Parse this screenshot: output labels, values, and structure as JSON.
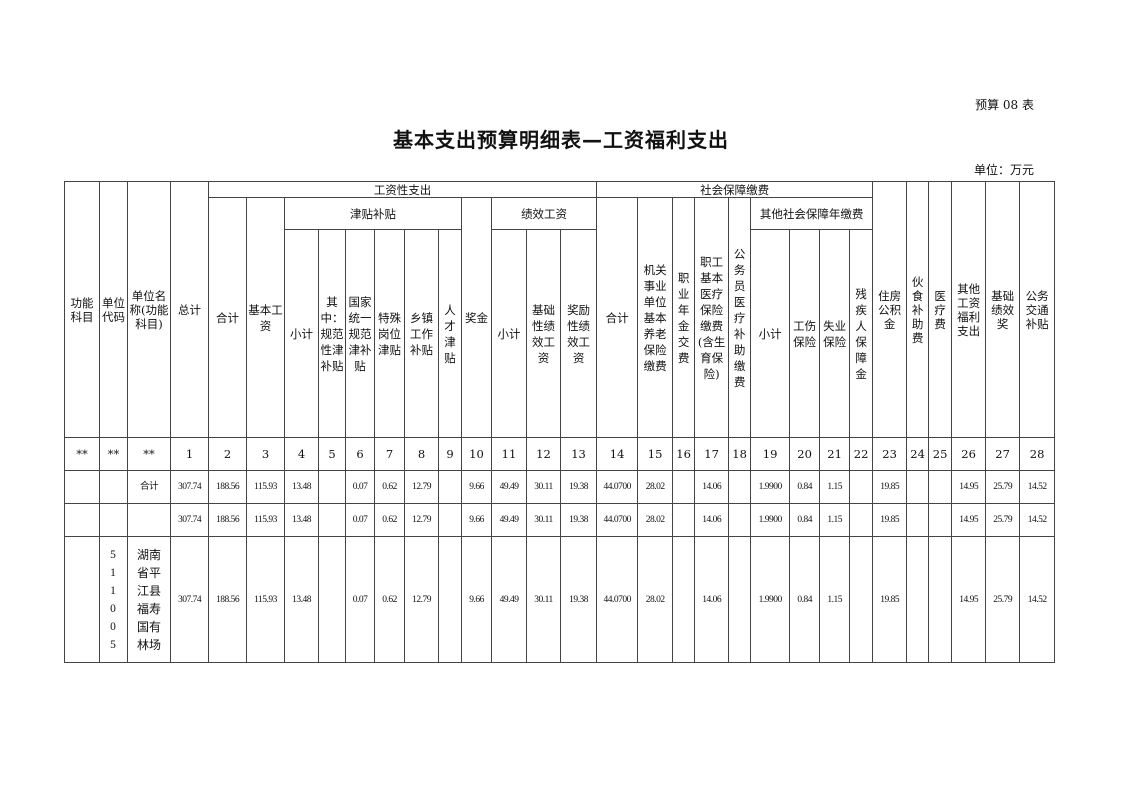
{
  "form_no": "预算 08 表",
  "title": "基本支出预算明细表—工资福利支出",
  "unit": "单位：万元",
  "headers": {
    "func_subject": "功能科目",
    "unit_code": "单位代码",
    "unit_name": "单位名称(功能科目)",
    "total": "总计",
    "wage_group": "工资性支出",
    "social_group": "社会保障缴费",
    "wage_sum": "合计",
    "basic_wage": "基本工资",
    "allowance_group": "津贴补贴",
    "bonus": "奖金",
    "perf_group": "绩效工资",
    "social_sum": "合计",
    "pension": "机关事业单位基本养老保险缴费",
    "annuity": "职业年金交费",
    "medical": "职工基本医疗保险缴费(含生育保险)",
    "civil_medical": "公务员医疗补助缴费",
    "other_social_group": "其他社会保障年缴费",
    "housing": "住房公积金",
    "meal": "伙食补助费",
    "medical_fee": "医疗费",
    "other_welfare": "其他工资福利支出",
    "basic_perf_bonus": "基础绩效奖",
    "transport": "公务交通补贴",
    "allow_subtotal": "小计",
    "allow_standard": "其中：规范性津补贴",
    "allow_national": "国家统一规范津补贴",
    "allow_special": "特殊岗位津贴",
    "allow_town": "乡镇工作补贴",
    "allow_talent": "人才津贴",
    "perf_subtotal": "小计",
    "perf_basic": "基础性绩效工资",
    "perf_reward": "奖励性绩效工资",
    "other_subtotal": "小计",
    "injury": "工伤保险",
    "unemployment": "失业保险",
    "disability": "残疾人保障金"
  },
  "col_numbers": [
    "**",
    "**",
    "**",
    "1",
    "2",
    "3",
    "4",
    "5",
    "6",
    "7",
    "8",
    "9",
    "10",
    "11",
    "12",
    "13",
    "14",
    "15",
    "16",
    "17",
    "18",
    "19",
    "20",
    "21",
    "22",
    "23",
    "24",
    "25",
    "26",
    "27",
    "28"
  ],
  "rows": [
    {
      "cells": [
        "",
        "",
        "合计",
        "307.74",
        "188.56",
        "115.93",
        "13.48",
        "",
        "0.07",
        "0.62",
        "12.79",
        "",
        "9.66",
        "49.49",
        "30.11",
        "19.38",
        "44.0700",
        "28.02",
        "",
        "14.06",
        "",
        "1.9900",
        "0.84",
        "1.15",
        "",
        "19.85",
        "",
        "",
        "14.95",
        "25.79",
        "14.52"
      ]
    },
    {
      "cells": [
        "",
        "",
        "",
        "307.74",
        "188.56",
        "115.93",
        "13.48",
        "",
        "0.07",
        "0.62",
        "12.79",
        "",
        "9.66",
        "49.49",
        "30.11",
        "19.38",
        "44.0700",
        "28.02",
        "",
        "14.06",
        "",
        "1.9900",
        "0.84",
        "1.15",
        "",
        "19.85",
        "",
        "",
        "14.95",
        "25.79",
        "14.52"
      ]
    },
    {
      "cells": [
        "",
        "511005",
        "湖南省平江县福寿国有林场",
        "307.74",
        "188.56",
        "115.93",
        "13.48",
        "",
        "0.07",
        "0.62",
        "12.79",
        "",
        "9.66",
        "49.49",
        "30.11",
        "19.38",
        "44.0700",
        "28.02",
        "",
        "14.06",
        "",
        "1.9900",
        "0.84",
        "1.15",
        "",
        "19.85",
        "",
        "",
        "14.95",
        "25.79",
        "14.52"
      ]
    }
  ]
}
